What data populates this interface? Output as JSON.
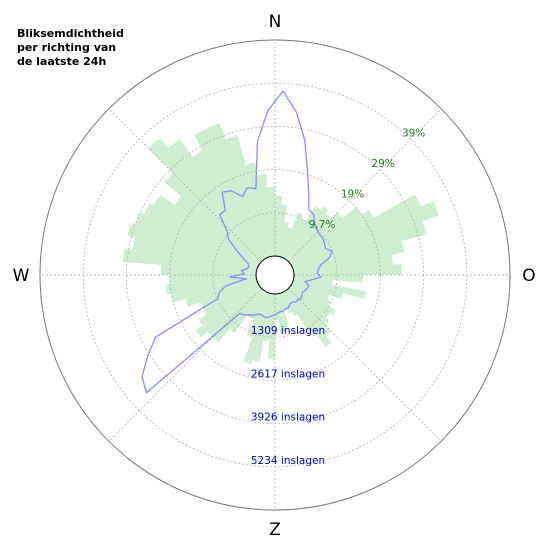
{
  "title_lines": [
    "Bliksemdichtheid",
    "per richting van",
    "de laatste 24h"
  ],
  "colors": {
    "density_fill": "#cdeecf",
    "strikes_line": "#8a8cff",
    "pct_label": "#1e7a1e",
    "count_label": "#0000cc",
    "grid": "#b0b0b0",
    "axis": "#777777"
  },
  "chart_data": {
    "type": "polar",
    "directions": [
      "N",
      "O",
      "Z",
      "W"
    ],
    "bins": 72,
    "bin_width_deg": 5,
    "pct_ticks": [
      "9,7%",
      "19%",
      "29%",
      "39%"
    ],
    "count_ticks": [
      "1309 inslagen",
      "2617 inslagen",
      "3926 inslagen",
      "5234 inslagen"
    ],
    "pct_max": 50,
    "count_max": 6540,
    "density_pct": [
      14,
      12,
      8,
      7,
      11,
      10,
      14,
      15,
      14,
      16,
      20,
      22,
      33,
      36,
      32,
      26,
      23,
      25,
      16,
      9,
      17,
      12,
      9,
      10,
      12,
      11,
      12,
      14,
      16,
      11,
      6,
      5,
      4,
      8,
      9,
      6,
      15,
      11,
      16,
      17,
      11,
      7,
      7,
      12,
      16,
      16,
      18,
      16,
      14,
      14,
      17,
      20,
      21,
      20,
      22,
      31,
      29,
      31,
      30,
      29,
      28,
      24,
      29,
      37,
      34,
      29,
      33,
      33,
      29,
      22,
      19,
      16
    ],
    "strikes_count": [
      5000,
      4400,
      3600,
      2700,
      2100,
      1650,
      1600,
      1400,
      1300,
      1250,
      1250,
      1200,
      1150,
      1300,
      1150,
      850,
      750,
      700,
      820,
      550,
      350,
      500,
      480,
      450,
      400,
      450,
      480,
      450,
      450,
      400,
      400,
      500,
      500,
      550,
      550,
      600,
      650,
      700,
      750,
      700,
      700,
      800,
      850,
      950,
      1000,
      4700,
      4500,
      4000,
      3500,
      1300,
      1200,
      950,
      300,
      800,
      350,
      450,
      300,
      250,
      300,
      500,
      800,
      1200,
      1400,
      1900,
      1900,
      2400,
      2300,
      2000,
      2200,
      2100,
      3500,
      4400
    ]
  }
}
